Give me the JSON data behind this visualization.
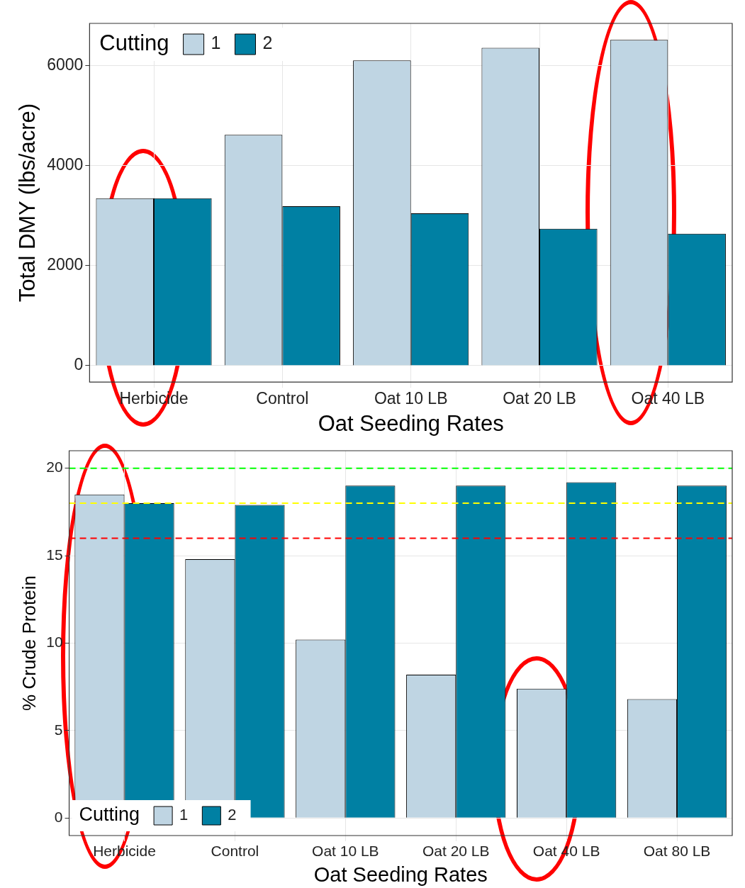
{
  "chart_data": [
    {
      "type": "bar",
      "categories": [
        "Herbicide",
        "Control",
        "Oat 10 LB",
        "Oat 20 LB",
        "Oat 40 LB"
      ],
      "xlabel": "Oat Seeding Rates",
      "ylabel": "Total DMY (lbs/acre)",
      "legend_title": "Cutting",
      "legend": "top left",
      "grid": true,
      "ylim": [
        -330,
        6850
      ],
      "yticks": [
        0,
        2000,
        4000,
        6000
      ],
      "series": [
        {
          "name": "1",
          "color": "#bfd5e3",
          "values": [
            3350,
            4620,
            6110,
            6360,
            6520
          ]
        },
        {
          "name": "2",
          "color": "#0080a3",
          "values": [
            3350,
            3190,
            3050,
            2740,
            2640
          ]
        }
      ]
    },
    {
      "type": "bar",
      "categories": [
        "Herbicide",
        "Control",
        "Oat 10 LB",
        "Oat 20 LB",
        "Oat 40 LB",
        "Oat 80 LB"
      ],
      "xlabel": "Oat Seeding Rates",
      "ylabel": "% Crude Protein",
      "legend_title": "Cutting",
      "legend": "bottom left",
      "grid": true,
      "ylim": [
        -1,
        21
      ],
      "yticks": [
        0,
        5,
        10,
        15,
        20
      ],
      "series": [
        {
          "name": "1",
          "color": "#bfd5e3",
          "values": [
            18.5,
            14.8,
            10.2,
            8.2,
            7.4,
            6.8
          ]
        },
        {
          "name": "2",
          "color": "#0080a3",
          "values": [
            18.0,
            17.9,
            19.0,
            19.0,
            19.2,
            19.0
          ]
        }
      ],
      "ref_lines": [
        {
          "axis": "y",
          "value": 20,
          "color": "#00ff00",
          "line_style": "dashed"
        },
        {
          "axis": "y",
          "value": 18,
          "color": "#ffff00",
          "line_style": "dashed"
        },
        {
          "axis": "y",
          "value": 16,
          "color": "#ff0000",
          "line_style": "dashed"
        }
      ]
    }
  ]
}
